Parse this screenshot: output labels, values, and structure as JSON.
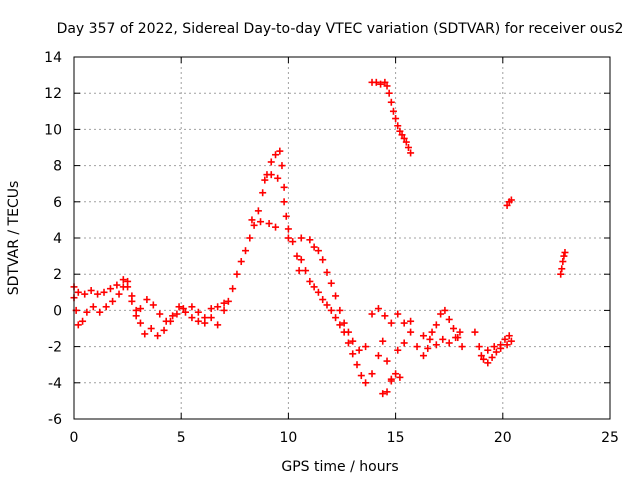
{
  "chart_data": {
    "type": "scatter",
    "title": "Day 357 of 2022, Sidereal Day-to-day VTEC variation (SDTVAR) for receiver ous2",
    "xlabel": "GPS time / hours",
    "ylabel": "SDTVAR / TECUs",
    "xlim": [
      0,
      25
    ],
    "ylim": [
      -6,
      14
    ],
    "xticks": [
      0,
      5,
      10,
      15,
      20,
      25
    ],
    "yticks": [
      -6,
      -4,
      -2,
      0,
      2,
      4,
      6,
      8,
      10,
      12,
      14
    ],
    "grid": true,
    "marker": "+",
    "series": [
      {
        "name": "SDTVAR",
        "color": "#ff0000",
        "points": [
          [
            0.0,
            1.3
          ],
          [
            0.1,
            0.0
          ],
          [
            0.2,
            -0.8
          ],
          [
            0.4,
            -0.6
          ],
          [
            0.6,
            -0.1
          ],
          [
            0.9,
            0.2
          ],
          [
            1.2,
            -0.1
          ],
          [
            1.5,
            0.2
          ],
          [
            1.8,
            0.5
          ],
          [
            2.1,
            0.9
          ],
          [
            2.3,
            1.3
          ],
          [
            2.5,
            1.6
          ],
          [
            2.7,
            0.8
          ],
          [
            2.9,
            0.0
          ],
          [
            3.1,
            -0.7
          ],
          [
            3.3,
            -1.3
          ],
          [
            3.6,
            -1.0
          ],
          [
            3.9,
            -1.4
          ],
          [
            4.2,
            -1.1
          ],
          [
            4.5,
            -0.6
          ],
          [
            4.8,
            -0.2
          ],
          [
            5.1,
            0.1
          ],
          [
            5.5,
            0.2
          ],
          [
            5.8,
            -0.6
          ],
          [
            6.1,
            -0.7
          ],
          [
            6.4,
            -0.4
          ],
          [
            6.7,
            -0.8
          ],
          [
            7.0,
            0.0
          ],
          [
            7.2,
            0.5
          ],
          [
            7.4,
            1.2
          ],
          [
            7.6,
            2.0
          ],
          [
            7.8,
            2.7
          ],
          [
            8.0,
            3.3
          ],
          [
            8.2,
            4.0
          ],
          [
            8.4,
            4.7
          ],
          [
            8.6,
            5.5
          ],
          [
            8.8,
            6.5
          ],
          [
            9.0,
            7.5
          ],
          [
            9.2,
            8.2
          ],
          [
            9.4,
            8.6
          ],
          [
            9.6,
            8.8
          ],
          [
            9.7,
            8.0
          ],
          [
            9.8,
            6.8
          ],
          [
            9.9,
            5.2
          ],
          [
            10.0,
            4.5
          ],
          [
            10.2,
            3.8
          ],
          [
            10.4,
            3.0
          ],
          [
            10.5,
            2.2
          ],
          [
            10.6,
            4.0
          ],
          [
            0.0,
            0.7
          ],
          [
            0.2,
            1.0
          ],
          [
            0.5,
            0.9
          ],
          [
            0.8,
            1.1
          ],
          [
            1.1,
            0.9
          ],
          [
            1.4,
            1.0
          ],
          [
            1.7,
            1.2
          ],
          [
            2.0,
            1.4
          ],
          [
            2.3,
            1.7
          ],
          [
            2.5,
            1.3
          ],
          [
            2.7,
            0.5
          ],
          [
            2.9,
            -0.3
          ],
          [
            3.1,
            0.1
          ],
          [
            3.4,
            0.6
          ],
          [
            3.7,
            0.3
          ],
          [
            4.0,
            -0.2
          ],
          [
            4.3,
            -0.6
          ],
          [
            4.6,
            -0.3
          ],
          [
            4.9,
            0.2
          ],
          [
            5.2,
            -0.1
          ],
          [
            5.5,
            -0.4
          ],
          [
            5.8,
            -0.1
          ],
          [
            6.1,
            -0.4
          ],
          [
            6.4,
            0.1
          ],
          [
            6.7,
            0.2
          ],
          [
            7.0,
            0.4
          ],
          [
            8.3,
            5.0
          ],
          [
            8.7,
            4.9
          ],
          [
            9.1,
            4.8
          ],
          [
            9.4,
            4.6
          ],
          [
            8.9,
            7.2
          ],
          [
            9.2,
            7.5
          ],
          [
            9.5,
            7.3
          ],
          [
            9.8,
            6.0
          ],
          [
            10.0,
            4.0
          ],
          [
            10.6,
            2.8
          ],
          [
            10.8,
            2.2
          ],
          [
            11.0,
            1.6
          ],
          [
            11.2,
            1.3
          ],
          [
            11.4,
            1.0
          ],
          [
            11.6,
            0.6
          ],
          [
            11.8,
            0.3
          ],
          [
            12.0,
            0.0
          ],
          [
            12.2,
            -0.4
          ],
          [
            12.4,
            -0.8
          ],
          [
            12.6,
            -1.2
          ],
          [
            12.8,
            -1.8
          ],
          [
            13.0,
            -2.4
          ],
          [
            13.2,
            -3.0
          ],
          [
            13.4,
            -3.6
          ],
          [
            13.6,
            -4.0
          ],
          [
            13.9,
            -3.5
          ],
          [
            14.2,
            -2.5
          ],
          [
            14.4,
            -1.7
          ],
          [
            14.6,
            -2.8
          ],
          [
            14.8,
            -3.8
          ],
          [
            14.4,
            -4.6
          ],
          [
            14.6,
            -4.5
          ],
          [
            14.8,
            -3.9
          ],
          [
            15.0,
            -3.5
          ],
          [
            15.2,
            -3.7
          ],
          [
            11.0,
            3.9
          ],
          [
            11.2,
            3.5
          ],
          [
            11.4,
            3.3
          ],
          [
            11.6,
            2.8
          ],
          [
            11.8,
            2.1
          ],
          [
            12.0,
            1.5
          ],
          [
            12.2,
            0.8
          ],
          [
            12.4,
            0.0
          ],
          [
            12.6,
            -0.7
          ],
          [
            12.8,
            -1.2
          ],
          [
            13.0,
            -1.7
          ],
          [
            13.3,
            -2.2
          ],
          [
            13.6,
            -2.0
          ],
          [
            13.9,
            -0.2
          ],
          [
            14.2,
            0.1
          ],
          [
            14.5,
            -0.3
          ],
          [
            14.8,
            -0.7
          ],
          [
            15.1,
            -0.2
          ],
          [
            15.4,
            -0.7
          ],
          [
            15.7,
            -0.6
          ],
          [
            15.1,
            -2.2
          ],
          [
            15.4,
            -1.8
          ],
          [
            15.7,
            -1.2
          ],
          [
            16.0,
            -2.0
          ],
          [
            16.3,
            -2.5
          ],
          [
            16.5,
            -2.1
          ],
          [
            16.7,
            -1.2
          ],
          [
            16.9,
            -0.8
          ],
          [
            17.1,
            -0.2
          ],
          [
            17.3,
            0.0
          ],
          [
            17.5,
            -0.5
          ],
          [
            17.7,
            -1.0
          ],
          [
            17.9,
            -1.5
          ],
          [
            18.1,
            -2.0
          ],
          [
            16.3,
            -1.4
          ],
          [
            16.6,
            -1.6
          ],
          [
            16.9,
            -1.9
          ],
          [
            17.2,
            -1.6
          ],
          [
            17.5,
            -1.8
          ],
          [
            17.8,
            -1.5
          ],
          [
            18.0,
            -1.2
          ],
          [
            18.7,
            -1.2
          ],
          [
            18.9,
            -2.0
          ],
          [
            19.1,
            -2.7
          ],
          [
            19.3,
            -2.9
          ],
          [
            19.5,
            -2.6
          ],
          [
            19.7,
            -2.3
          ],
          [
            19.9,
            -1.9
          ],
          [
            20.1,
            -1.6
          ],
          [
            20.3,
            -1.4
          ],
          [
            19.0,
            -2.5
          ],
          [
            19.3,
            -2.2
          ],
          [
            19.6,
            -2.0
          ],
          [
            19.9,
            -2.1
          ],
          [
            20.2,
            -1.9
          ],
          [
            20.4,
            -1.7
          ],
          [
            13.9,
            12.6
          ],
          [
            14.1,
            12.6
          ],
          [
            14.3,
            12.5
          ],
          [
            14.5,
            12.6
          ],
          [
            14.6,
            12.4
          ],
          [
            14.7,
            12.0
          ],
          [
            14.8,
            11.5
          ],
          [
            14.9,
            11.0
          ],
          [
            15.0,
            10.6
          ],
          [
            15.1,
            10.2
          ],
          [
            15.2,
            9.9
          ],
          [
            15.3,
            9.7
          ],
          [
            15.4,
            9.5
          ],
          [
            15.5,
            9.3
          ],
          [
            15.6,
            9.0
          ],
          [
            15.7,
            8.7
          ],
          [
            20.2,
            5.8
          ],
          [
            20.3,
            6.0
          ],
          [
            20.4,
            6.1
          ],
          [
            22.7,
            2.0
          ],
          [
            22.75,
            2.3
          ],
          [
            22.8,
            2.7
          ],
          [
            22.85,
            3.0
          ],
          [
            22.9,
            3.2
          ]
        ]
      }
    ]
  }
}
